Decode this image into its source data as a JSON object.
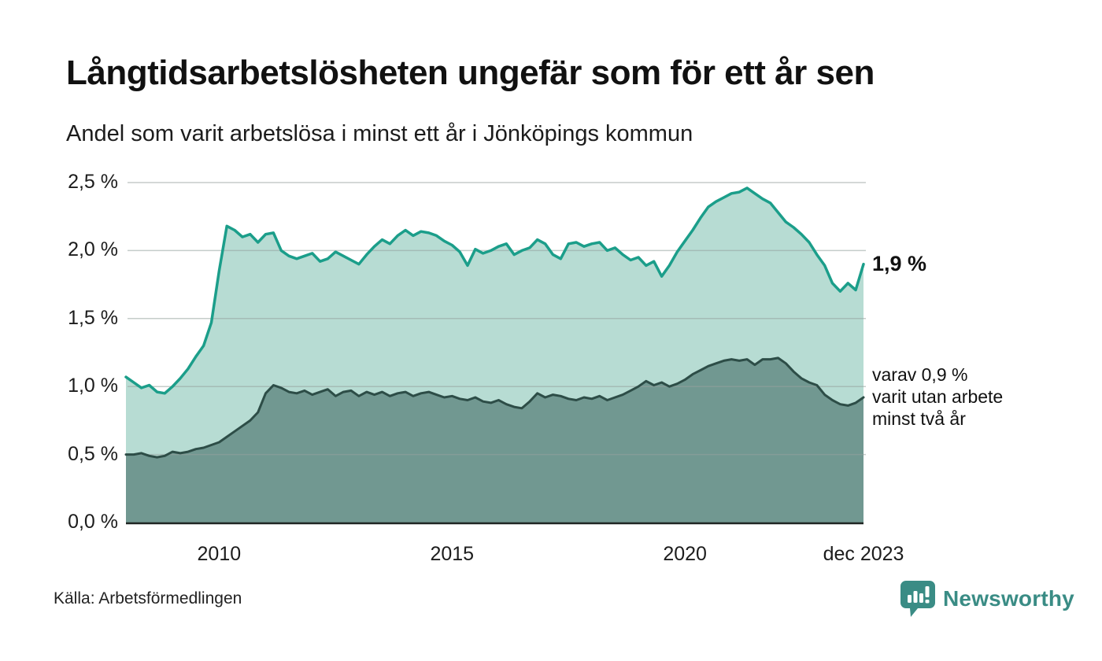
{
  "header": {
    "title": "Långtidsarbetslösheten ungefär som för ett år sen",
    "subtitle": "Andel som varit arbetslösa i minst ett år i Jönköpings kommun"
  },
  "chart_data": {
    "type": "area",
    "title": "Långtidsarbetslösheten ungefär som för ett år sen",
    "subtitle": "Andel som varit arbetslösa i minst ett år i Jönköpings kommun",
    "x_domain": [
      2008.0,
      2023.8333
    ],
    "x_step_years": 0.16667,
    "ylim": [
      0,
      2.5
    ],
    "grid": true,
    "legend_position": "right-annotations",
    "y_ticks": [
      {
        "label": "2,5 %",
        "value": 2.5
      },
      {
        "label": "2,0 %",
        "value": 2.0
      },
      {
        "label": "1,5 %",
        "value": 1.5
      },
      {
        "label": "1,0 %",
        "value": 1.0
      },
      {
        "label": "0,5 %",
        "value": 0.5
      },
      {
        "label": "0,0 %",
        "value": 0.0
      }
    ],
    "x_ticks": [
      {
        "label": "2010",
        "year": 2010
      },
      {
        "label": "2015",
        "year": 2015
      },
      {
        "label": "2020",
        "year": 2020
      },
      {
        "label": "dec 2023",
        "year": 2023.8333
      }
    ],
    "series": [
      {
        "name": "Andel som varit arbetslösa i minst ett år",
        "line_color": "#1b9e8a",
        "fill_color": "#b7dcd3",
        "line_width": 3.5,
        "values": [
          1.07,
          1.03,
          0.99,
          1.01,
          0.96,
          0.95,
          1.0,
          1.06,
          1.13,
          1.22,
          1.3,
          1.47,
          1.85,
          2.18,
          2.15,
          2.1,
          2.12,
          2.06,
          2.12,
          2.13,
          2.0,
          1.96,
          1.94,
          1.96,
          1.98,
          1.92,
          1.94,
          1.99,
          1.96,
          1.93,
          1.9,
          1.97,
          2.03,
          2.08,
          2.05,
          2.11,
          2.15,
          2.11,
          2.14,
          2.13,
          2.11,
          2.07,
          2.04,
          1.99,
          1.89,
          2.01,
          1.98,
          2.0,
          2.03,
          2.05,
          1.97,
          2.0,
          2.02,
          2.08,
          2.05,
          1.97,
          1.94,
          2.05,
          2.06,
          2.03,
          2.05,
          2.06,
          2.0,
          2.02,
          1.97,
          1.93,
          1.95,
          1.89,
          1.92,
          1.81,
          1.89,
          1.99,
          2.07,
          2.15,
          2.24,
          2.32,
          2.36,
          2.39,
          2.42,
          2.43,
          2.46,
          2.42,
          2.38,
          2.35,
          2.28,
          2.21,
          2.17,
          2.12,
          2.06,
          1.97,
          1.89,
          1.76,
          1.7,
          1.76,
          1.71,
          1.9
        ]
      },
      {
        "name": "varav utan arbete minst två år",
        "line_color": "#2d4d47",
        "fill_color": "#719891",
        "line_width": 3,
        "values": [
          0.5,
          0.5,
          0.51,
          0.49,
          0.48,
          0.49,
          0.52,
          0.51,
          0.52,
          0.54,
          0.55,
          0.57,
          0.59,
          0.63,
          0.67,
          0.71,
          0.75,
          0.81,
          0.95,
          1.01,
          0.99,
          0.96,
          0.95,
          0.97,
          0.94,
          0.96,
          0.98,
          0.93,
          0.96,
          0.97,
          0.93,
          0.96,
          0.94,
          0.96,
          0.93,
          0.95,
          0.96,
          0.93,
          0.95,
          0.96,
          0.94,
          0.92,
          0.93,
          0.91,
          0.9,
          0.92,
          0.89,
          0.88,
          0.9,
          0.87,
          0.85,
          0.84,
          0.89,
          0.95,
          0.92,
          0.94,
          0.93,
          0.91,
          0.9,
          0.92,
          0.91,
          0.93,
          0.9,
          0.92,
          0.94,
          0.97,
          1.0,
          1.04,
          1.01,
          1.03,
          1.0,
          1.02,
          1.05,
          1.09,
          1.12,
          1.15,
          1.17,
          1.19,
          1.2,
          1.19,
          1.2,
          1.16,
          1.2,
          1.2,
          1.21,
          1.17,
          1.11,
          1.06,
          1.03,
          1.01,
          0.94,
          0.9,
          0.87,
          0.86,
          0.88,
          0.92
        ]
      }
    ],
    "end_labels": {
      "total": "1,9 %",
      "two_year_line1": "varav 0,9 %",
      "two_year_line2": "varit utan arbete",
      "two_year_line3": "minst två år"
    },
    "grid_color": "rgba(150,162,158,0.55)",
    "axis_color": "#1f2523"
  },
  "footer": {
    "source": "Källa: Arbetsförmedlingen",
    "brand": "Newsworthy",
    "brand_color": "#3a8c85"
  }
}
